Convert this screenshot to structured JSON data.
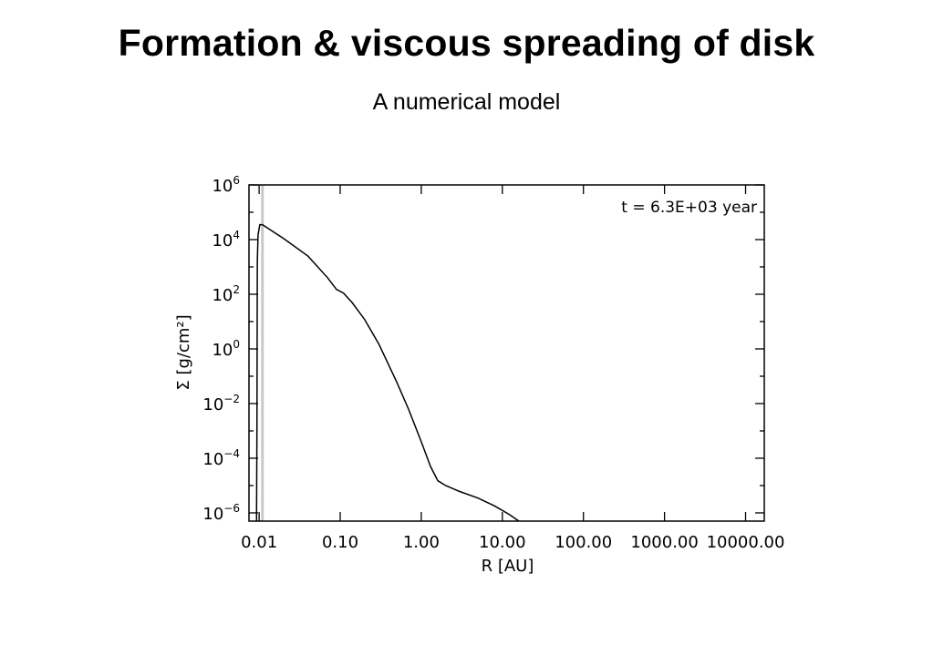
{
  "slide": {
    "title": "Formation & viscous spreading of disk",
    "subtitle": "A numerical model"
  },
  "chart_data": {
    "type": "line",
    "title": "",
    "xlabel": "R [AU]",
    "ylabel": "Σ [g/cm²]",
    "xscale": "log",
    "yscale": "log",
    "xlim": [
      0.0075,
      17000
    ],
    "ylim": [
      5e-07,
      1000000.0
    ],
    "x_ticks": [
      {
        "value": 0.01,
        "label": "0.01"
      },
      {
        "value": 0.1,
        "label": "0.10"
      },
      {
        "value": 1,
        "label": "1.00"
      },
      {
        "value": 10,
        "label": "10.00"
      },
      {
        "value": 100,
        "label": "100.00"
      },
      {
        "value": 1000,
        "label": "1000.00"
      },
      {
        "value": 10000,
        "label": "10000.00"
      }
    ],
    "y_ticks": [
      {
        "value": 1000000.0,
        "base": "10",
        "exp": "6"
      },
      {
        "value": 10000.0,
        "base": "10",
        "exp": "4"
      },
      {
        "value": 100.0,
        "base": "10",
        "exp": "2"
      },
      {
        "value": 1,
        "base": "10",
        "exp": "0"
      },
      {
        "value": 0.01,
        "base": "10",
        "exp": "−2"
      },
      {
        "value": 0.0001,
        "base": "10",
        "exp": "−4"
      },
      {
        "value": 1e-06,
        "base": "10",
        "exp": "−6"
      }
    ],
    "annotation": "t = 6.3E+03 year",
    "reference_line": {
      "x": 0.011,
      "color": "#c8c8c8"
    },
    "grid": false,
    "series": [
      {
        "color": "#000000",
        "points": [
          [
            0.0093,
            5e-07
          ],
          [
            0.0093,
            1e-06
          ],
          [
            0.0094,
            0.001
          ],
          [
            0.0095,
            1500.0
          ],
          [
            0.0097,
            15000.0
          ],
          [
            0.0102,
            35000.0
          ],
          [
            0.011,
            35000.0
          ],
          [
            0.02,
            11000.0
          ],
          [
            0.04,
            2500.0
          ],
          [
            0.07,
            400.0
          ],
          [
            0.09,
            150.0
          ],
          [
            0.11,
            110.0
          ],
          [
            0.14,
            50.0
          ],
          [
            0.2,
            12.0
          ],
          [
            0.3,
            1.5
          ],
          [
            0.5,
            0.06
          ],
          [
            0.7,
            0.006
          ],
          [
            1.0,
            0.0004
          ],
          [
            1.3,
            5e-05
          ],
          [
            1.6,
            1.5e-05
          ],
          [
            2.0,
            1e-05
          ],
          [
            3.0,
            6e-06
          ],
          [
            5.0,
            3.5e-06
          ],
          [
            8.0,
            1.8e-06
          ],
          [
            12.0,
            9e-07
          ],
          [
            16.0,
            5e-07
          ]
        ]
      }
    ]
  }
}
